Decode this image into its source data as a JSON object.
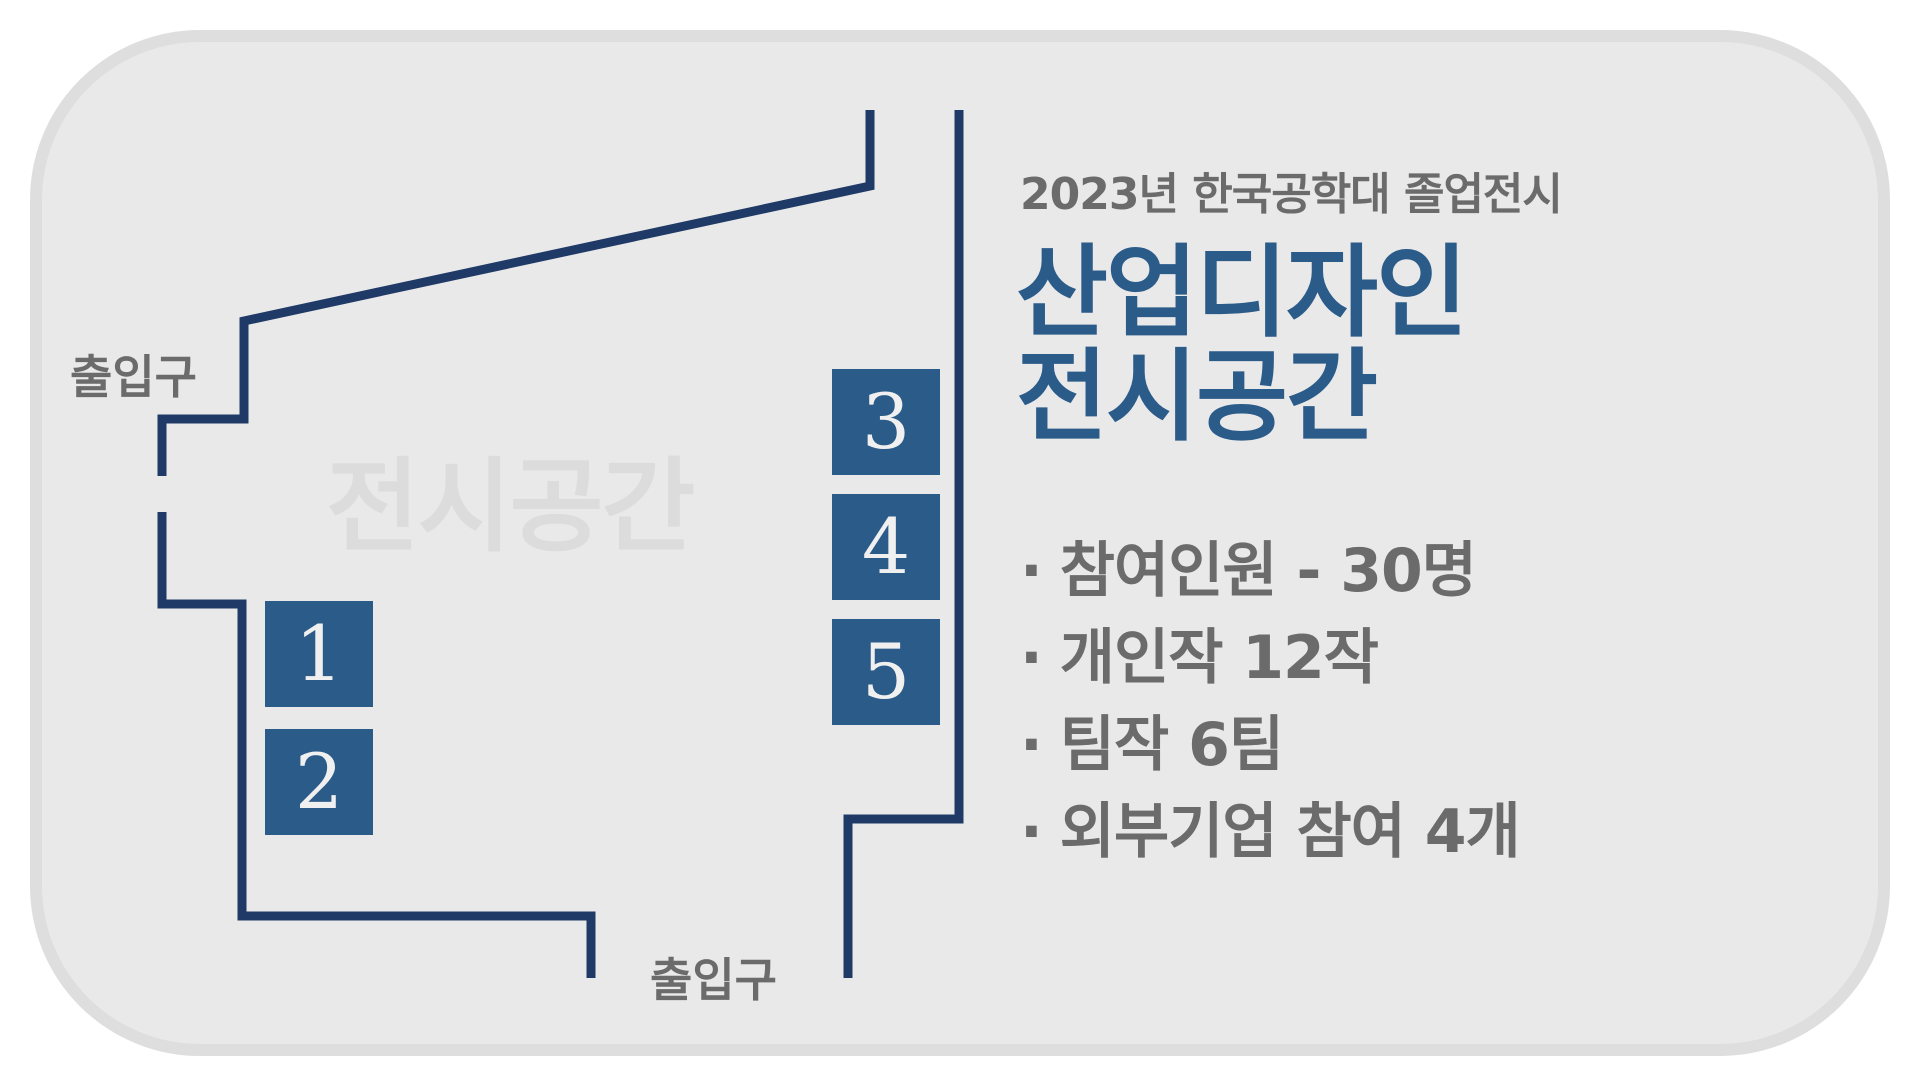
{
  "header": {
    "subtitle": "2023년 한국공학대 졸업전시",
    "title_line1": "산업디자인",
    "title_line2": "전시공간"
  },
  "floor_plan": {
    "area_label": "전시공간",
    "entrance_left": "출입구",
    "entrance_bottom": "출입구",
    "booths": [
      "1",
      "2",
      "3",
      "4",
      "5"
    ]
  },
  "stats": {
    "bullet": "·",
    "items": [
      "참여인원 - 30명",
      "개인작 12작",
      "팀작 6팀",
      "외부기업 참여 4개"
    ]
  },
  "colors": {
    "wall": "#1f3a66",
    "booth": "#2b5b88",
    "title": "#2b5b88",
    "text": "#6b6b6b",
    "card": "#e9e9ea"
  }
}
